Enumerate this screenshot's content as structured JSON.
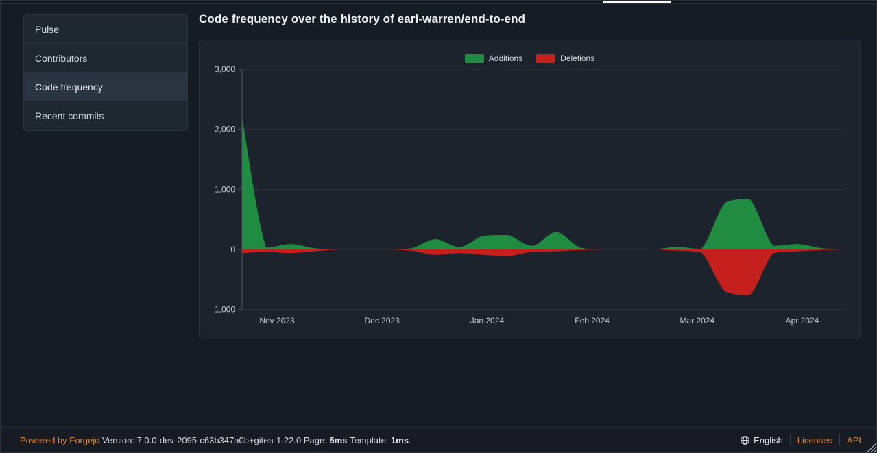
{
  "colors": {
    "additions_green": "#208c42",
    "deletions_red": "#c4211e",
    "link_orange": "#d98a3d",
    "grid_line": "#2b323e",
    "axis_line": "#4a5563"
  },
  "sidebar": {
    "items": [
      {
        "label": "Pulse",
        "active": false
      },
      {
        "label": "Contributors",
        "active": false
      },
      {
        "label": "Code frequency",
        "active": true
      },
      {
        "label": "Recent commits",
        "active": false
      }
    ]
  },
  "main": {
    "title": "Code frequency over the history of earl-warren/end-to-end"
  },
  "chart_data": {
    "type": "area",
    "title": "Code frequency over the history of earl-warren/end-to-end",
    "legend_position": "top-center",
    "grid": true,
    "x_unit": "week",
    "x_tick_labels": [
      "Nov 2023",
      "Dec 2023",
      "Jan 2024",
      "Feb 2024",
      "Mar 2024",
      "Apr 2024"
    ],
    "y_ticks": [
      {
        "label": "3,000",
        "value": 3000
      },
      {
        "label": "2,000",
        "value": 2000
      },
      {
        "label": "1,000",
        "value": 1000
      },
      {
        "label": "0",
        "value": 0
      },
      {
        "label": "-1,000",
        "value": -1000
      }
    ],
    "ylim": [
      -1100,
      3000
    ],
    "series": [
      {
        "name": "Additions",
        "color": "#208c42",
        "values": [
          2200,
          30,
          90,
          20,
          0,
          0,
          0,
          20,
          170,
          40,
          230,
          240,
          60,
          290,
          30,
          0,
          0,
          0,
          40,
          10,
          780,
          840,
          60,
          90,
          20,
          0
        ]
      },
      {
        "name": "Deletions",
        "color": "#c4211e",
        "values": [
          -60,
          -40,
          -60,
          -30,
          0,
          0,
          0,
          -20,
          -90,
          -60,
          -90,
          -110,
          -40,
          -30,
          -10,
          0,
          0,
          0,
          -20,
          -50,
          -700,
          -760,
          -60,
          -30,
          -10,
          0
        ]
      }
    ]
  },
  "footer": {
    "powered_by": "Powered by Forgejo",
    "version_label": "Version:",
    "version": "7.0.0-dev-2095-c63b347a0b+gitea-1.22.0",
    "page_label": "Page:",
    "page_time": "5ms",
    "template_label": "Template:",
    "template_time": "1ms",
    "language": "English",
    "licenses_label": "Licenses",
    "api_label": "API"
  }
}
